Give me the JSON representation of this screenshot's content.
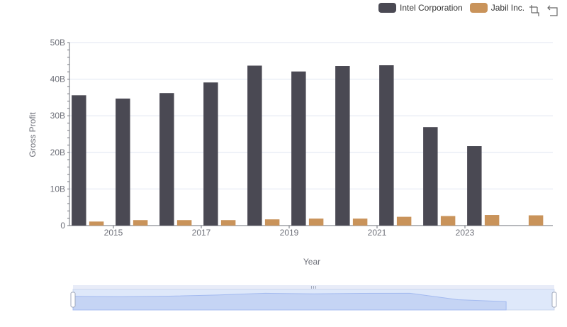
{
  "legend": [
    {
      "label": "Intel Corporation",
      "color": "#4a4953"
    },
    {
      "label": "Jabil Inc.",
      "color": "#c9935a"
    }
  ],
  "toolbox": {
    "icons": [
      "zoom-icon",
      "restore-icon"
    ]
  },
  "chart_data": {
    "type": "bar",
    "xlabel": "Year",
    "ylabel": "Gross Profit",
    "ylim": [
      0,
      50000000000
    ],
    "y_ticks": [
      "0",
      "10B",
      "20B",
      "30B",
      "40B",
      "50B"
    ],
    "x_tick_labels": [
      "2015",
      "2017",
      "2019",
      "2021",
      "2023"
    ],
    "categories": [
      "2014",
      "2015",
      "2016",
      "2017",
      "2018",
      "2019",
      "2020",
      "2021",
      "2022",
      "2023",
      "2024"
    ],
    "series": [
      {
        "name": "Intel Corporation",
        "color": "#4a4953",
        "values": [
          35600000000,
          34700000000,
          36200000000,
          39100000000,
          43700000000,
          42100000000,
          43600000000,
          43800000000,
          26900000000,
          21700000000,
          null
        ]
      },
      {
        "name": "Jabil Inc.",
        "color": "#c9935a",
        "values": [
          1100000000,
          1500000000,
          1500000000,
          1500000000,
          1700000000,
          1900000000,
          1900000000,
          2400000000,
          2600000000,
          2900000000,
          2800000000
        ]
      }
    ],
    "grid": true,
    "legend_position": "top-right",
    "data_zoom": true
  }
}
